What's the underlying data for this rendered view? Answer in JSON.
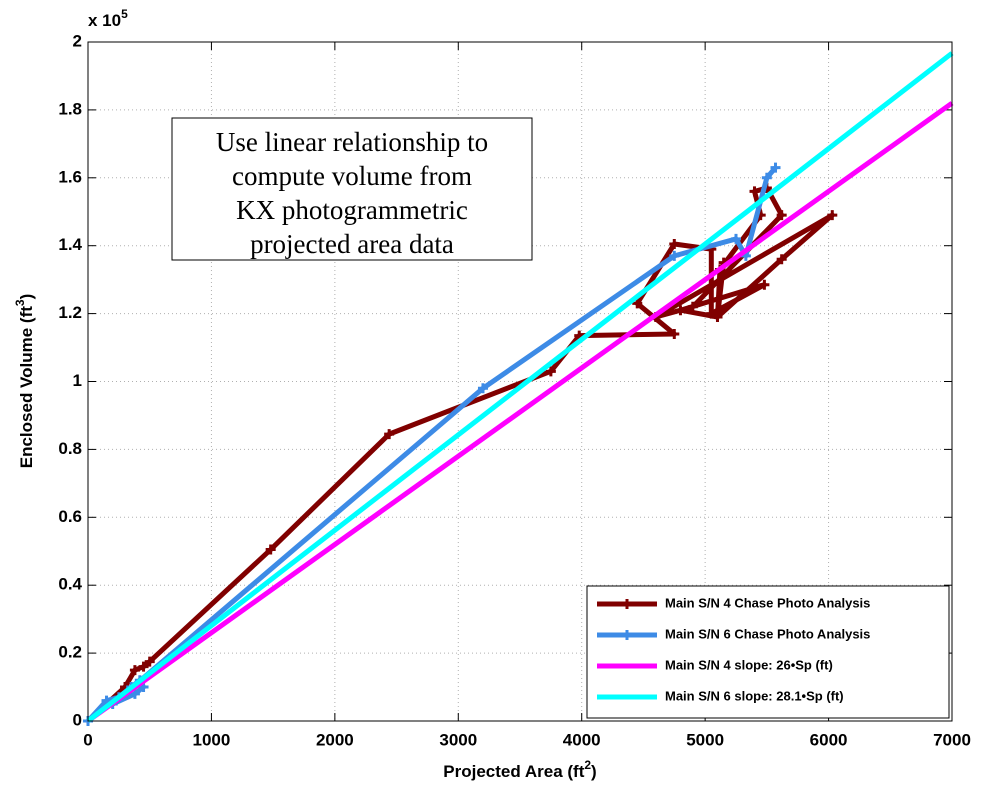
{
  "chart_data": {
    "type": "line",
    "xlabel": [
      "Projected Area (ft",
      "2",
      ")"
    ],
    "ylabel": [
      "Enclosed Volume (ft",
      "3",
      ")"
    ],
    "y_multiplier": {
      "base": "x 10",
      "exponent": "5"
    },
    "annotation": [
      "Use linear relationship to",
      "compute volume from",
      "KX photogrammetric",
      "projected area data"
    ],
    "xlim": [
      0,
      7000
    ],
    "xticks": [
      0,
      1000,
      2000,
      3000,
      4000,
      5000,
      6000,
      7000
    ],
    "ylim": [
      0,
      2
    ],
    "yticks": [
      0,
      0.2,
      0.4,
      0.6,
      0.8,
      1,
      1.2,
      1.4,
      1.6,
      1.8,
      2
    ],
    "grid": true,
    "legend_position": "lower-right",
    "series": [
      {
        "name": "Main S/N 4 Chase Photo Analysis",
        "color": "#800000",
        "markers": true,
        "x": [
          0,
          150,
          300,
          380,
          450,
          500,
          1480,
          2440,
          3750,
          3980,
          4750,
          4450,
          4750,
          5050,
          5050,
          5480,
          4800,
          5100,
          5120,
          5450,
          5400,
          5500,
          5620,
          4900,
          4600,
          6030,
          5620,
          5100,
          5150
        ],
        "values": [
          0,
          0.05,
          0.1,
          0.15,
          0.16,
          0.175,
          0.505,
          0.845,
          1.03,
          1.135,
          1.14,
          1.23,
          1.405,
          1.39,
          1.2,
          1.285,
          1.21,
          1.19,
          1.33,
          1.49,
          1.56,
          1.57,
          1.49,
          1.22,
          1.19,
          1.49,
          1.36,
          1.19,
          1.35
        ]
      },
      {
        "name": "Main S/N 6 Chase Photo Analysis",
        "color": "#3d8be6",
        "markers": true,
        "x": [
          0,
          150,
          250,
          350,
          420,
          450,
          380,
          200,
          3200,
          4750,
          5250,
          5330,
          5500,
          5570
        ],
        "values": [
          0,
          0.06,
          0.07,
          0.1,
          0.12,
          0.1,
          0.08,
          0.05,
          0.98,
          1.37,
          1.42,
          1.37,
          1.6,
          1.63
        ]
      },
      {
        "name": "Main S/N 4 slope: 26•Sp (ft)",
        "color": "#ff00ff",
        "markers": false,
        "x": [
          0,
          7000
        ],
        "values": [
          0,
          1.82
        ]
      },
      {
        "name": "Main S/N 6 slope: 28.1•Sp (ft)",
        "color": "#00ffff",
        "markers": false,
        "x": [
          0,
          7000
        ],
        "values": [
          0,
          1.967
        ]
      }
    ]
  }
}
